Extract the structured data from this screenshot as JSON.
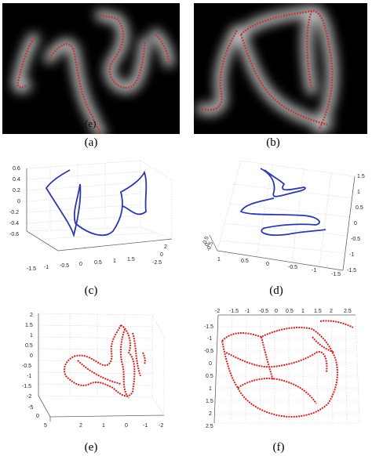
{
  "figure": {
    "panels": [
      {
        "id": "a",
        "caption": "(a)",
        "inset_label": "(e)"
      },
      {
        "id": "b",
        "caption": "(b)"
      },
      {
        "id": "c",
        "caption": "(c)",
        "z_ticks": [
          "0.6",
          "0.4",
          "0.2",
          "0",
          "-0.2",
          "-0.4",
          "-0.6"
        ],
        "x_ticks": [
          "-1.5",
          "-1",
          "-0.5",
          "0",
          "0.5",
          "1",
          "1.5"
        ],
        "y_ticks": [
          "2",
          "0",
          "-2.5"
        ]
      },
      {
        "id": "d",
        "caption": "(d)",
        "right_ticks": [
          "1.5",
          "1",
          "0.5",
          "0",
          "-0.5",
          "-1",
          "-1.5"
        ],
        "bottom_ticks": [
          "1",
          "0.5",
          "0",
          "-0.5",
          "-1",
          "-1.5"
        ],
        "left_ticks": [
          "0.5",
          "0",
          "-0.5"
        ]
      },
      {
        "id": "e",
        "caption": "(e)",
        "z_ticks": [
          "2",
          "1.5",
          "1",
          "0.5",
          "0",
          "-0.5",
          "-1",
          "-1.5",
          "-2"
        ],
        "x_ticks": [
          "2",
          "1",
          "0",
          "-1",
          "-2"
        ],
        "y_ticks": [
          "-5",
          "0",
          "5"
        ]
      },
      {
        "id": "f",
        "caption": "(f)",
        "top_ticks": [
          "-2",
          "-1.5",
          "-1",
          "-0.5",
          "0",
          "0.5",
          "1",
          "1.5",
          "2",
          "2.5"
        ],
        "left_ticks": [
          "-1.5",
          "-1",
          "-0.5",
          "0",
          "0.5",
          "1",
          "1.5",
          "2",
          "2.5"
        ]
      }
    ]
  }
}
